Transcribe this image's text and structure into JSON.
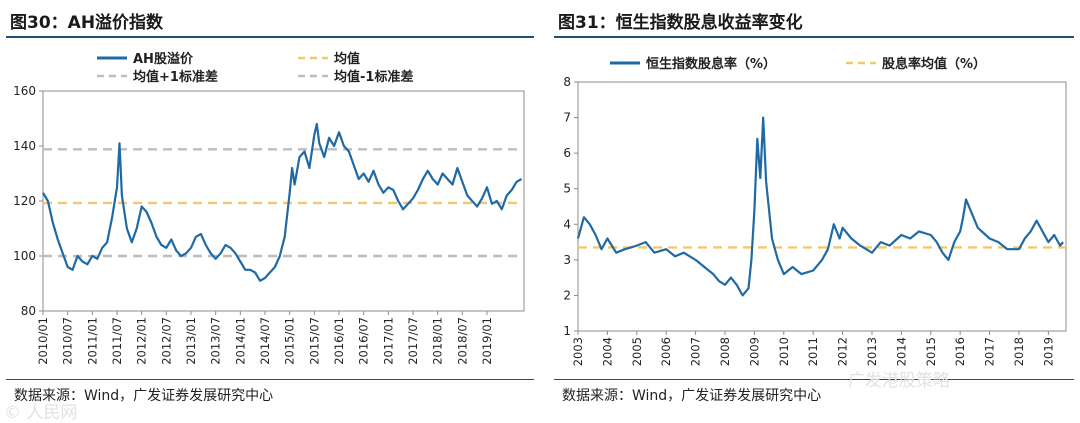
{
  "left": {
    "title": "图30：AH溢价指数",
    "source": "数据来源：Wind，广发证券发展研究中心",
    "chart_data": {
      "type": "line",
      "ylim": [
        80,
        160
      ],
      "yticks": [
        "80",
        "100",
        "120",
        "140",
        "160"
      ],
      "xlim": [
        2010.0,
        2019.75
      ],
      "xticks": [
        "2010/01",
        "2010/07",
        "2011/01",
        "2011/07",
        "2012/01",
        "2012/07",
        "2013/01",
        "2013/07",
        "2014/01",
        "2014/07",
        "2015/01",
        "2015/07",
        "2016/01",
        "2016/07",
        "2017/01",
        "2017/07",
        "2018/01",
        "2018/07",
        "2019/01"
      ],
      "legend": [
        "AH股溢价",
        "均值",
        "均值+1标准差",
        "均值-1标准差"
      ],
      "colors": {
        "series": "#1f6aa5",
        "mean": "#f2c86e",
        "band": "#bdbdbd"
      },
      "mean": 119.3,
      "upper": 138.8,
      "lower": 100.0,
      "series": [
        {
          "name": "AH股溢价",
          "x": [
            2010.0,
            2010.1,
            2010.2,
            2010.3,
            2010.4,
            2010.5,
            2010.6,
            2010.7,
            2010.8,
            2010.9,
            2011.0,
            2011.1,
            2011.2,
            2011.3,
            2011.4,
            2011.5,
            2011.55,
            2011.6,
            2011.7,
            2011.8,
            2011.9,
            2012.0,
            2012.1,
            2012.2,
            2012.3,
            2012.4,
            2012.5,
            2012.6,
            2012.7,
            2012.8,
            2012.9,
            2013.0,
            2013.1,
            2013.2,
            2013.3,
            2013.4,
            2013.5,
            2013.6,
            2013.7,
            2013.8,
            2013.9,
            2014.0,
            2014.1,
            2014.2,
            2014.3,
            2014.4,
            2014.5,
            2014.6,
            2014.7,
            2014.8,
            2014.9,
            2015.0,
            2015.05,
            2015.1,
            2015.2,
            2015.3,
            2015.4,
            2015.5,
            2015.55,
            2015.6,
            2015.7,
            2015.8,
            2015.9,
            2016.0,
            2016.1,
            2016.2,
            2016.3,
            2016.4,
            2016.5,
            2016.6,
            2016.7,
            2016.8,
            2016.9,
            2017.0,
            2017.1,
            2017.2,
            2017.3,
            2017.4,
            2017.5,
            2017.6,
            2017.7,
            2017.8,
            2017.9,
            2018.0,
            2018.1,
            2018.2,
            2018.3,
            2018.4,
            2018.5,
            2018.6,
            2018.7,
            2018.8,
            2018.9,
            2019.0,
            2019.1,
            2019.2,
            2019.3,
            2019.4,
            2019.5,
            2019.6,
            2019.7
          ],
          "y": [
            123,
            120,
            112,
            106,
            101,
            96,
            95,
            100,
            98,
            97,
            100,
            99,
            103,
            105,
            114,
            125,
            141,
            122,
            110,
            105,
            110,
            118,
            116,
            112,
            107,
            104,
            103,
            106,
            102,
            100,
            101,
            103,
            107,
            108,
            104,
            101,
            99,
            101,
            104,
            103,
            101,
            98,
            95,
            95,
            94,
            91,
            92,
            94,
            96,
            100,
            107,
            123,
            132,
            126,
            136,
            138,
            132,
            144,
            148,
            141,
            136,
            143,
            140,
            145,
            140,
            138,
            133,
            128,
            130,
            127,
            131,
            126,
            123,
            125,
            124,
            120,
            117,
            119,
            121,
            124,
            128,
            131,
            128,
            126,
            130,
            128,
            126,
            132,
            127,
            122,
            120,
            118,
            121,
            125,
            119,
            120,
            117,
            122,
            124,
            127,
            128
          ]
        }
      ]
    }
  },
  "right": {
    "title": "图31：恒生指数股息收益率变化",
    "source": "数据来源：Wind，广发证券发展研究中心",
    "chart_data": {
      "type": "line",
      "ylim": [
        1,
        8
      ],
      "yticks": [
        "1",
        "2",
        "3",
        "4",
        "5",
        "6",
        "7",
        "8"
      ],
      "xlim": [
        2003.0,
        2019.6
      ],
      "xticks": [
        "2003",
        "2004",
        "2005",
        "2006",
        "2007",
        "2008",
        "2009",
        "2010",
        "2011",
        "2012",
        "2013",
        "2014",
        "2015",
        "2016",
        "2017",
        "2018",
        "2019"
      ],
      "legend": [
        "恒生指数股息率（%）",
        "股息率均值（%）"
      ],
      "colors": {
        "series": "#1f6aa5",
        "mean": "#f2c86e"
      },
      "mean": 3.35,
      "series": [
        {
          "name": "恒生指数股息率（%）",
          "x": [
            2003.0,
            2003.2,
            2003.4,
            2003.6,
            2003.8,
            2004.0,
            2004.3,
            2004.6,
            2005.0,
            2005.3,
            2005.6,
            2006.0,
            2006.3,
            2006.6,
            2007.0,
            2007.3,
            2007.6,
            2007.8,
            2008.0,
            2008.2,
            2008.4,
            2008.6,
            2008.8,
            2008.9,
            2009.0,
            2009.1,
            2009.2,
            2009.3,
            2009.4,
            2009.6,
            2009.8,
            2010.0,
            2010.3,
            2010.6,
            2011.0,
            2011.3,
            2011.5,
            2011.7,
            2011.9,
            2012.0,
            2012.3,
            2012.6,
            2013.0,
            2013.3,
            2013.6,
            2014.0,
            2014.3,
            2014.6,
            2015.0,
            2015.2,
            2015.4,
            2015.6,
            2015.8,
            2016.0,
            2016.1,
            2016.2,
            2016.4,
            2016.6,
            2017.0,
            2017.3,
            2017.6,
            2018.0,
            2018.2,
            2018.4,
            2018.6,
            2018.8,
            2019.0,
            2019.2,
            2019.4,
            2019.5
          ],
          "y": [
            3.6,
            4.2,
            4.0,
            3.7,
            3.3,
            3.6,
            3.2,
            3.3,
            3.4,
            3.5,
            3.2,
            3.3,
            3.1,
            3.2,
            3.0,
            2.8,
            2.6,
            2.4,
            2.3,
            2.5,
            2.3,
            2.0,
            2.2,
            3.0,
            4.4,
            6.4,
            5.3,
            7.0,
            5.2,
            3.6,
            3.0,
            2.6,
            2.8,
            2.6,
            2.7,
            3.0,
            3.3,
            4.0,
            3.6,
            3.9,
            3.6,
            3.4,
            3.2,
            3.5,
            3.4,
            3.7,
            3.6,
            3.8,
            3.7,
            3.5,
            3.2,
            3.0,
            3.5,
            3.8,
            4.2,
            4.7,
            4.3,
            3.9,
            3.6,
            3.5,
            3.3,
            3.3,
            3.6,
            3.8,
            4.1,
            3.8,
            3.5,
            3.7,
            3.4,
            3.5
          ]
        }
      ]
    }
  },
  "watermarks": {
    "left": "© 人民网",
    "right": "广发港股策略"
  }
}
